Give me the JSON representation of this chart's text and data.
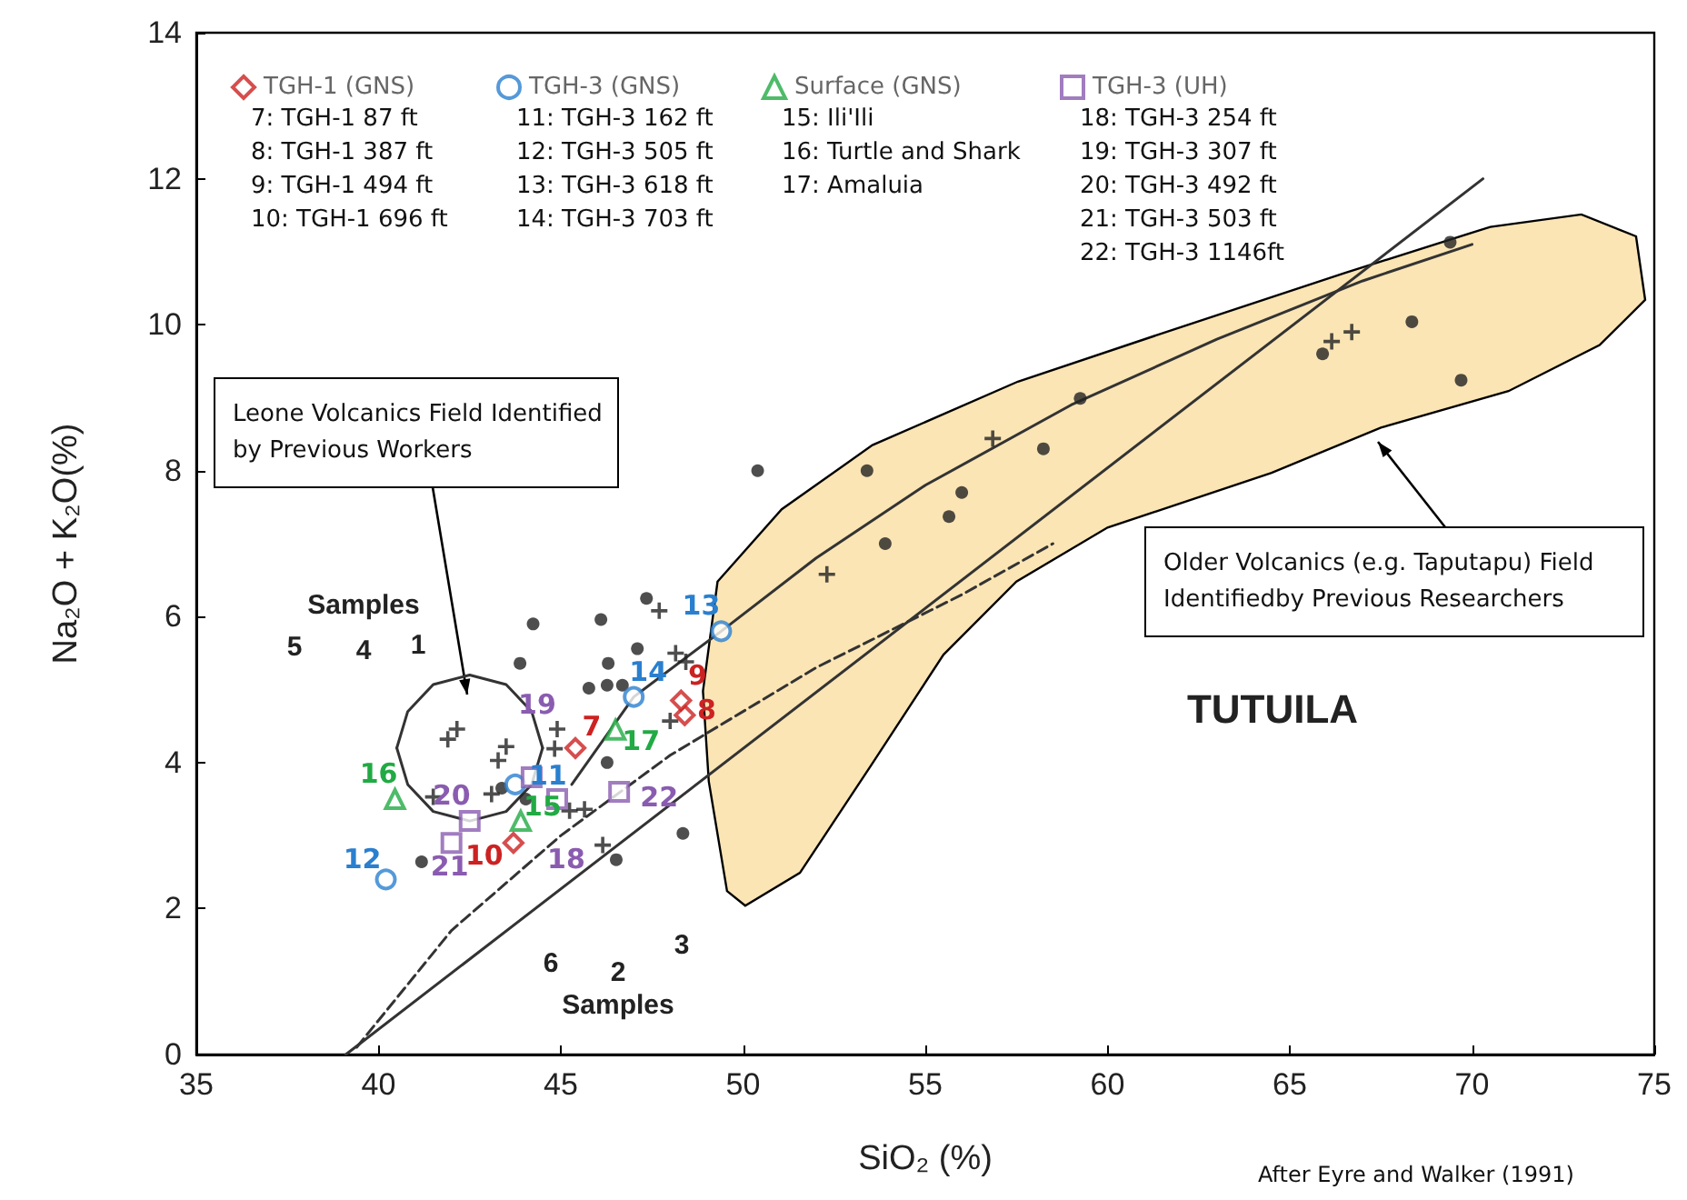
{
  "chart_data": {
    "type": "scatter",
    "xlabel": "SiO₂ (%)",
    "ylabel": "Na₂O + K₂O(%)",
    "xlim": [
      35,
      75
    ],
    "xticks": [
      35,
      40,
      45,
      50,
      55,
      60,
      65,
      70,
      75
    ],
    "ylim": [
      0,
      14
    ],
    "yticks": [
      0,
      2,
      4,
      6,
      8,
      10,
      12,
      14
    ],
    "grid": false,
    "legend": "top left",
    "series": [
      {
        "type": "area",
        "color": "#fbe5b5",
        "x": [
          49.56,
          49.06,
          48.9,
          49.3,
          51.06,
          53.55,
          57.54,
          62.03,
          66.52,
          70.5,
          73.0,
          74.5,
          74.75,
          73.5,
          71.0,
          67.5,
          64.5,
          60.0,
          57.5,
          55.5,
          53.55,
          51.56,
          50.06
        ],
        "values": [
          2.24,
          3.74,
          4.98,
          6.48,
          7.47,
          8.35,
          9.22,
          9.97,
          10.71,
          11.34,
          11.51,
          11.21,
          10.34,
          9.72,
          9.09,
          8.59,
          7.97,
          7.22,
          6.48,
          5.48,
          3.99,
          2.49,
          2.04
        ]
      },
      {
        "type": "line",
        "color": "#333333",
        "marker": "none",
        "line_style": "solid",
        "x": [
          45.3,
          47.0,
          49.4,
          52,
          55,
          59,
          63,
          67,
          70
        ],
        "values": [
          3.7,
          4.9,
          5.8,
          6.8,
          7.8,
          8.9,
          9.8,
          10.6,
          11.1
        ]
      },
      {
        "type": "line",
        "color": "#333333",
        "marker": "none",
        "line_style": "solid",
        "x": [
          39.1,
          70.3
        ],
        "values": [
          0,
          12.0
        ]
      },
      {
        "type": "line",
        "color": "#333333",
        "marker": "none",
        "line_style": "dashed",
        "x": [
          39.4,
          42,
          45,
          48,
          52,
          56,
          58.5
        ],
        "values": [
          0.1,
          1.7,
          3.0,
          4.1,
          5.3,
          6.3,
          7.0
        ]
      },
      {
        "type": "line",
        "color": "#333333",
        "marker": "none",
        "line_style": "solid",
        "x": [
          40.5,
          40.8,
          41.5,
          42.5,
          43.5,
          44.2,
          44.5
        ],
        "values": [
          4.2,
          4.7,
          5.07,
          5.2,
          5.07,
          4.7,
          4.2
        ]
      },
      {
        "type": "line",
        "color": "#333333",
        "marker": "none",
        "line_style": "solid",
        "x": [
          40.5,
          40.8,
          41.5,
          42.5,
          43.5,
          44.2,
          44.5
        ],
        "values": [
          4.2,
          3.7,
          3.33,
          3.2,
          3.33,
          3.7,
          4.2
        ]
      },
      {
        "type": "scatter",
        "color": "#222222",
        "marker": "circle",
        "x": [
          53.4,
          59.25,
          58.24,
          56.0,
          55.65,
          53.9,
          65.9,
          68.35,
          69.7,
          69.4,
          50.4,
          47.35,
          46.1,
          47.1,
          46.3,
          45.77,
          46.27,
          46.69,
          44.24,
          43.88,
          46.27,
          44.04,
          48.35,
          46.52,
          41.18,
          43.38
        ],
        "values": [
          8.0,
          8.99,
          8.3,
          7.7,
          7.37,
          7.0,
          9.6,
          10.04,
          9.24,
          11.13,
          8.0,
          6.25,
          5.96,
          5.56,
          5.36,
          5.02,
          5.06,
          5.06,
          5.9,
          5.36,
          4.0,
          3.5,
          3.03,
          2.67,
          2.64,
          3.65
        ]
      },
      {
        "type": "scatter",
        "color": "#222222",
        "marker": "cross",
        "x": [
          56.85,
          52.3,
          66.15,
          66.7,
          47.7,
          48.15,
          48.43,
          42.15,
          41.9,
          43.5,
          43.28,
          43.1,
          41.5,
          44.9,
          44.83,
          45.24,
          45.65,
          46.15,
          48.0
        ],
        "values": [
          8.44,
          6.58,
          9.77,
          9.9,
          6.08,
          5.5,
          5.38,
          4.46,
          4.32,
          4.22,
          4.03,
          3.57,
          3.53,
          4.46,
          4.19,
          3.34,
          3.36,
          2.87,
          4.57
        ]
      },
      {
        "name": "TGH-1 (GNS)",
        "type": "scatter",
        "color": "#cc2222",
        "marker": "diamond",
        "x": [
          45.4,
          48.4,
          48.3,
          43.7
        ],
        "values": [
          4.2,
          4.65,
          4.85,
          2.9
        ]
      },
      {
        "name": "TGH-3 (GNS)",
        "type": "scatter",
        "color": "#2a7fcf",
        "marker": "circle",
        "x": [
          43.75,
          40.2,
          49.4,
          47.0
        ],
        "values": [
          3.7,
          2.4,
          5.8,
          4.9
        ]
      },
      {
        "name": "Surface (GNS)",
        "type": "scatter",
        "color": "#22aa44",
        "marker": "triangle",
        "x": [
          43.9,
          40.45,
          46.5
        ],
        "values": [
          3.2,
          3.5,
          4.45
        ]
      },
      {
        "name": "TGH-3 (UH)",
        "type": "scatter",
        "color": "#8a5cb0",
        "marker": "square",
        "x": [
          44.9,
          44.2,
          42.5,
          42.0,
          46.6
        ],
        "values": [
          3.5,
          3.8,
          3.2,
          2.9,
          3.6
        ]
      }
    ],
    "annotations": [
      "7: TGH-1 87 ft\n8: TGH-1 387 ft\n9: TGH-1 494 ft\n10: TGH-1 696 ft",
      "11: TGH-3 162 ft\n12: TGH-3 505 ft\n13: TGH-3 618 ft\n14: TGH-3 703 ft",
      "15: Ili'Ili\n16: Turtle and Shark\n17: Amaluia",
      "18: TGH-3 254 ft\n19: TGH-3 307 ft\n20: TGH-3 492 ft\n21: TGH-3 503 ft\n22: TGH-3 1146ft",
      "After Eyre and Walker (1991)",
      "Leone Volcanics Field Identified\nby Previous Workers",
      "Older Volcanics (e.g. Taputapu) Field\nIdentifiedby Previous Researchers",
      "TUTUILA",
      "Samples",
      "Samples",
      "5",
      "4",
      "1",
      "6",
      "2",
      "3",
      {
        "text": "7",
        "x": 45.4,
        "y": 4.2
      },
      {
        "text": "8",
        "x": 48.4,
        "y": 4.65
      },
      {
        "text": "9",
        "x": 48.3,
        "y": 4.85
      },
      {
        "text": "10",
        "x": 43.7,
        "y": 2.9
      },
      {
        "text": "11",
        "x": 43.75,
        "y": 3.7
      },
      {
        "text": "12",
        "x": 40.2,
        "y": 2.4
      },
      {
        "text": "13",
        "x": 49.4,
        "y": 5.8
      },
      {
        "text": "14",
        "x": 47.0,
        "y": 4.9
      },
      {
        "text": "15",
        "x": 43.9,
        "y": 3.2
      },
      {
        "text": "16",
        "x": 40.45,
        "y": 3.5
      },
      {
        "text": "17",
        "x": 46.5,
        "y": 4.45
      },
      {
        "text": "18",
        "x": 44.9,
        "y": 3.5
      },
      {
        "text": "19",
        "x": 44.2,
        "y": 3.8
      },
      {
        "text": "20",
        "x": 42.5,
        "y": 3.2
      },
      {
        "text": "21",
        "x": 42.0,
        "y": 2.9
      },
      {
        "text": "22",
        "x": 46.6,
        "y": 3.6
      }
    ]
  }
}
